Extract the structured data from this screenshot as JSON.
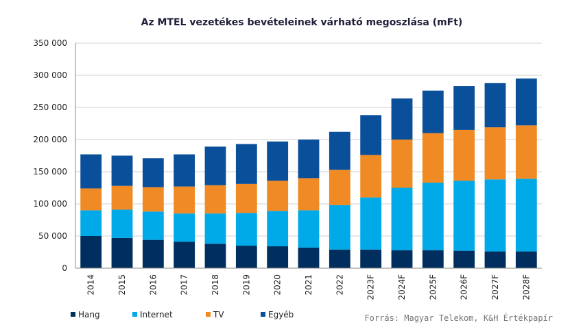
{
  "chart_data": {
    "type": "bar",
    "stacked": true,
    "title": "Az MTEL vezetékes bevételeinek várható megoszlása (mFt)",
    "categories": [
      "2014",
      "2015",
      "2016",
      "2017",
      "2018",
      "2019",
      "2020",
      "2021",
      "2022",
      "2023F",
      "2024F",
      "2025F",
      "2026F",
      "2027F",
      "2028F"
    ],
    "y_tick_labels": [
      "0",
      "50 000",
      "100 000",
      "150 000",
      "200 000",
      "250 000",
      "300 000",
      "350 000"
    ],
    "ylim": [
      0,
      350000
    ],
    "grid": true,
    "legend_position": "bottom-left",
    "series": [
      {
        "name": "Hang",
        "color": "#002f5f",
        "values": [
          50000,
          47000,
          44000,
          41000,
          38000,
          35000,
          34000,
          32000,
          29000,
          29000,
          28000,
          28000,
          27000,
          26000,
          26000
        ]
      },
      {
        "name": "Internet",
        "color": "#00a9e8",
        "values": [
          40000,
          44000,
          44000,
          44000,
          47000,
          51000,
          55000,
          58000,
          69000,
          81000,
          97000,
          105000,
          109000,
          112000,
          113000
        ]
      },
      {
        "name": "TV",
        "color": "#f08a24",
        "values": [
          34000,
          37000,
          38000,
          42000,
          44000,
          45000,
          47000,
          50000,
          55000,
          66000,
          75000,
          77000,
          79000,
          81000,
          83000
        ]
      },
      {
        "name": "Egyéb",
        "color": "#0a4f9a",
        "values": [
          53000,
          47000,
          45000,
          50000,
          60000,
          62000,
          61000,
          60000,
          59000,
          62000,
          64000,
          66000,
          68000,
          69000,
          73000
        ]
      }
    ],
    "source": "Forrás: Magyar Telekom, K&H Értékpapír"
  }
}
